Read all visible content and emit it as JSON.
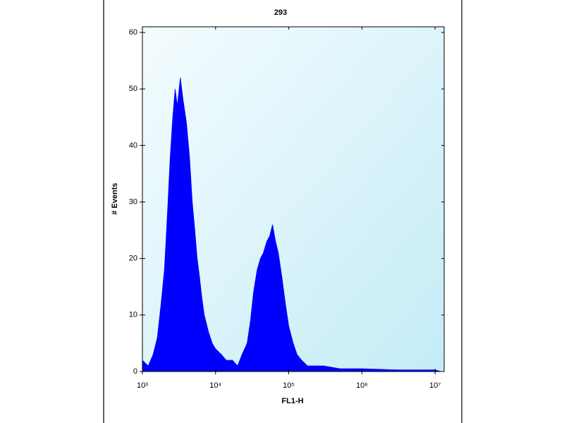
{
  "chart_data": {
    "type": "area",
    "title": "293",
    "xlabel": "FL1-H",
    "ylabel": "# Events",
    "x": [
      1000,
      1200,
      1400,
      1600,
      1800,
      2000,
      2200,
      2400,
      2600,
      2800,
      3000,
      3300,
      3600,
      4000,
      4400,
      4800,
      5200,
      5600,
      6000,
      6500,
      7000,
      8000,
      9000,
      10000,
      12000,
      14000,
      17000,
      20000,
      23000,
      27000,
      30000,
      33000,
      37000,
      41000,
      45000,
      50000,
      55000,
      60000,
      66000,
      72000,
      80000,
      90000,
      100000,
      115000,
      130000,
      150000,
      180000,
      220000,
      300000,
      500000,
      1000000,
      3000000,
      10000000,
      12000000
    ],
    "values": [
      2,
      1,
      3,
      6,
      12,
      18,
      28,
      38,
      45,
      50,
      47,
      52,
      48,
      44,
      38,
      30,
      25,
      20,
      17,
      13,
      10,
      7,
      5,
      4,
      3,
      2,
      2,
      1,
      3,
      5,
      9,
      14,
      18,
      20,
      21,
      23,
      24,
      26,
      23,
      21,
      17,
      12,
      8,
      5,
      3,
      2,
      1,
      1,
      1,
      0.5,
      0.5,
      0.3,
      0.3,
      0
    ],
    "color": "#0000ff",
    "xscale": "log",
    "xlim": [
      1000,
      13300000
    ],
    "ylim": [
      0,
      61
    ],
    "xticks": [
      {
        "value": 1000,
        "label": "10³"
      },
      {
        "value": 10000,
        "label": "10⁴"
      },
      {
        "value": 100000,
        "label": "10⁵"
      },
      {
        "value": 1000000,
        "label": "10⁶"
      },
      {
        "value": 10000000,
        "label": "10⁷"
      }
    ],
    "yticks": [
      0,
      10,
      20,
      30,
      40,
      50,
      60
    ]
  }
}
